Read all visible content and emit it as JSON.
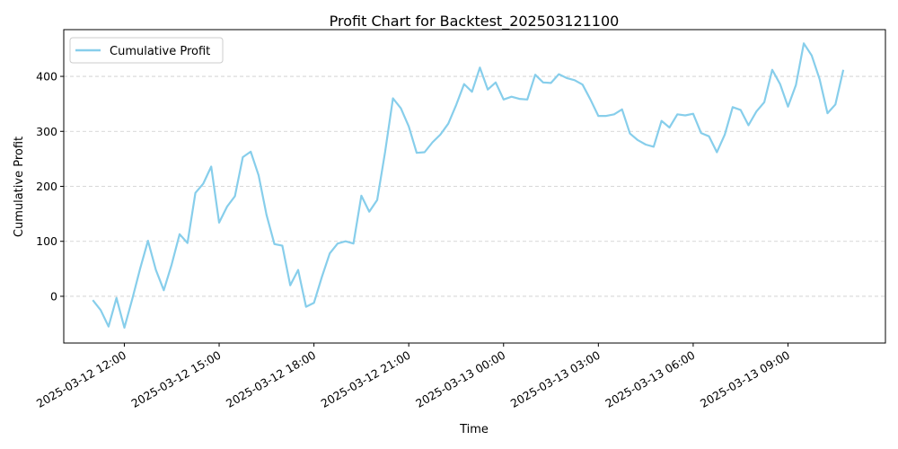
{
  "chart_data": {
    "type": "line",
    "title": "Profit Chart for Backtest_202503121100",
    "xlabel": "Time",
    "ylabel": "Cumulative Profit",
    "grid": {
      "x": false,
      "y": true,
      "style": "dashed",
      "color": "#cccccc"
    },
    "legend": {
      "position": "top-left"
    },
    "x_ticks": [
      "2025-03-12 12:00",
      "2025-03-12 15:00",
      "2025-03-12 18:00",
      "2025-03-12 21:00",
      "2025-03-13 00:00",
      "2025-03-13 03:00",
      "2025-03-13 06:00",
      "2025-03-13 09:00"
    ],
    "y_ticks": [
      0,
      100,
      200,
      300,
      400
    ],
    "xlim": [
      "2025-03-12 10:05",
      "2025-03-13 12:05"
    ],
    "ylim": [
      -85,
      485
    ],
    "series": [
      {
        "name": "Cumulative Profit",
        "color": "#87ceeb",
        "points": [
          [
            "2025-03-12 11:00",
            -7
          ],
          [
            "2025-03-12 11:15",
            -25
          ],
          [
            "2025-03-12 11:30",
            -55
          ],
          [
            "2025-03-12 11:45",
            -3
          ],
          [
            "2025-03-12 12:00",
            -57
          ],
          [
            "2025-03-12 12:15",
            -5
          ],
          [
            "2025-03-12 12:30",
            50
          ],
          [
            "2025-03-12 12:45",
            101
          ],
          [
            "2025-03-12 13:00",
            48
          ],
          [
            "2025-03-12 13:15",
            11
          ],
          [
            "2025-03-12 13:30",
            58
          ],
          [
            "2025-03-12 13:45",
            113
          ],
          [
            "2025-03-12 14:00",
            97
          ],
          [
            "2025-03-12 14:15",
            188
          ],
          [
            "2025-03-12 14:30",
            205
          ],
          [
            "2025-03-12 14:45",
            236
          ],
          [
            "2025-03-12 15:00",
            134
          ],
          [
            "2025-03-12 15:15",
            163
          ],
          [
            "2025-03-12 15:30",
            182
          ],
          [
            "2025-03-12 15:45",
            253
          ],
          [
            "2025-03-12 16:00",
            263
          ],
          [
            "2025-03-12 16:15",
            220
          ],
          [
            "2025-03-12 16:30",
            148
          ],
          [
            "2025-03-12 16:45",
            95
          ],
          [
            "2025-03-12 17:00",
            92
          ],
          [
            "2025-03-12 17:15",
            20
          ],
          [
            "2025-03-12 17:30",
            48
          ],
          [
            "2025-03-12 17:45",
            -19
          ],
          [
            "2025-03-12 18:00",
            -12
          ],
          [
            "2025-03-12 18:15",
            35
          ],
          [
            "2025-03-12 18:30",
            78
          ],
          [
            "2025-03-12 18:45",
            96
          ],
          [
            "2025-03-12 19:00",
            100
          ],
          [
            "2025-03-12 19:15",
            96
          ],
          [
            "2025-03-12 19:30",
            183
          ],
          [
            "2025-03-12 19:45",
            154
          ],
          [
            "2025-03-12 20:00",
            175
          ],
          [
            "2025-03-12 20:15",
            262
          ],
          [
            "2025-03-12 20:30",
            360
          ],
          [
            "2025-03-12 20:45",
            342
          ],
          [
            "2025-03-12 21:00",
            309
          ],
          [
            "2025-03-12 21:15",
            261
          ],
          [
            "2025-03-12 21:30",
            262
          ],
          [
            "2025-03-12 21:45",
            280
          ],
          [
            "2025-03-12 22:00",
            294
          ],
          [
            "2025-03-12 22:15",
            314
          ],
          [
            "2025-03-12 22:30",
            348
          ],
          [
            "2025-03-12 22:45",
            386
          ],
          [
            "2025-03-12 23:00",
            372
          ],
          [
            "2025-03-12 23:15",
            416
          ],
          [
            "2025-03-12 23:30",
            376
          ],
          [
            "2025-03-12 23:45",
            389
          ],
          [
            "2025-03-13 00:00",
            358
          ],
          [
            "2025-03-13 00:15",
            363
          ],
          [
            "2025-03-13 00:30",
            359
          ],
          [
            "2025-03-13 00:45",
            358
          ],
          [
            "2025-03-13 01:00",
            403
          ],
          [
            "2025-03-13 01:15",
            389
          ],
          [
            "2025-03-13 01:30",
            388
          ],
          [
            "2025-03-13 01:45",
            404
          ],
          [
            "2025-03-13 02:00",
            397
          ],
          [
            "2025-03-13 02:15",
            393
          ],
          [
            "2025-03-13 02:30",
            385
          ],
          [
            "2025-03-13 02:45",
            358
          ],
          [
            "2025-03-13 03:00",
            328
          ],
          [
            "2025-03-13 03:15",
            328
          ],
          [
            "2025-03-13 03:30",
            331
          ],
          [
            "2025-03-13 03:45",
            340
          ],
          [
            "2025-03-13 04:00",
            296
          ],
          [
            "2025-03-13 04:15",
            284
          ],
          [
            "2025-03-13 04:30",
            276
          ],
          [
            "2025-03-13 04:45",
            272
          ],
          [
            "2025-03-13 05:00",
            319
          ],
          [
            "2025-03-13 05:15",
            307
          ],
          [
            "2025-03-13 05:30",
            331
          ],
          [
            "2025-03-13 05:45",
            329
          ],
          [
            "2025-03-13 06:00",
            332
          ],
          [
            "2025-03-13 06:15",
            297
          ],
          [
            "2025-03-13 06:30",
            291
          ],
          [
            "2025-03-13 06:45",
            262
          ],
          [
            "2025-03-13 07:00",
            294
          ],
          [
            "2025-03-13 07:15",
            344
          ],
          [
            "2025-03-13 07:30",
            339
          ],
          [
            "2025-03-13 07:45",
            311
          ],
          [
            "2025-03-13 08:00",
            336
          ],
          [
            "2025-03-13 08:15",
            353
          ],
          [
            "2025-03-13 08:30",
            412
          ],
          [
            "2025-03-13 08:45",
            386
          ],
          [
            "2025-03-13 09:00",
            345
          ],
          [
            "2025-03-13 09:15",
            384
          ],
          [
            "2025-03-13 09:30",
            460
          ],
          [
            "2025-03-13 09:45",
            438
          ],
          [
            "2025-03-13 10:00",
            395
          ],
          [
            "2025-03-13 10:15",
            333
          ],
          [
            "2025-03-13 10:30",
            349
          ],
          [
            "2025-03-13 10:45",
            412
          ]
        ]
      }
    ]
  }
}
